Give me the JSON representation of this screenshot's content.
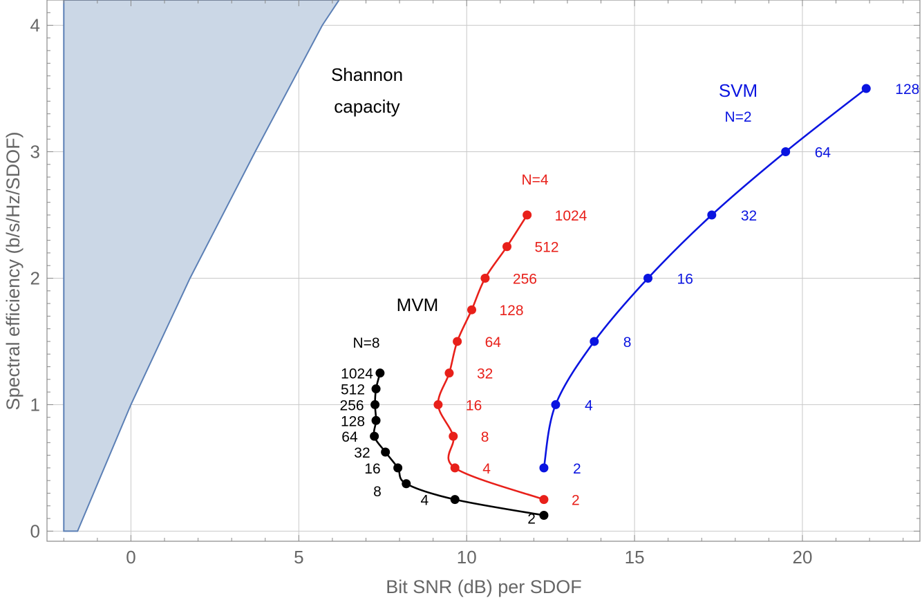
{
  "chart_data": {
    "type": "line",
    "title": "",
    "xlabel": "Bit SNR (dB) per SDOF",
    "ylabel": "Spectral efficiency (b/s/Hz/SDOF)",
    "xlim": [
      -2.5,
      23.5
    ],
    "ylim": [
      -0.08,
      4.2
    ],
    "x_ticks": [
      0,
      5,
      10,
      15,
      20
    ],
    "y_ticks": [
      0,
      1,
      2,
      3,
      4
    ],
    "grid": true,
    "region": {
      "name": "Shannon capacity",
      "fill": "#cbd7e6",
      "stroke": "#5b7fb5",
      "points": [
        [
          -2.0,
          0
        ],
        [
          -1.59,
          0
        ],
        [
          0,
          1
        ],
        [
          1.76,
          2
        ],
        [
          3.7,
          3
        ],
        [
          5.7,
          4
        ],
        [
          6.2,
          4.2
        ],
        [
          -2.0,
          4.2
        ]
      ]
    },
    "series": [
      {
        "name": "MVM N=8",
        "color": "#000000",
        "points": [
          {
            "label": "2",
            "x": 12.3,
            "y": 0.125
          },
          {
            "label": "4",
            "x": 9.65,
            "y": 0.25
          },
          {
            "label": "8",
            "x": 8.2,
            "y": 0.375
          },
          {
            "label": "16",
            "x": 7.95,
            "y": 0.5
          },
          {
            "label": "32",
            "x": 7.58,
            "y": 0.625
          },
          {
            "label": "64",
            "x": 7.25,
            "y": 0.75
          },
          {
            "label": "128",
            "x": 7.3,
            "y": 0.875
          },
          {
            "label": "256",
            "x": 7.27,
            "y": 1.0
          },
          {
            "label": "512",
            "x": 7.3,
            "y": 1.125
          },
          {
            "label": "1024",
            "x": 7.42,
            "y": 1.25
          }
        ]
      },
      {
        "name": "MVM N=4",
        "color": "#e8201a",
        "points": [
          {
            "label": "2",
            "x": 12.3,
            "y": 0.25
          },
          {
            "label": "4",
            "x": 9.65,
            "y": 0.5
          },
          {
            "label": "8",
            "x": 9.6,
            "y": 0.75
          },
          {
            "label": "16",
            "x": 9.15,
            "y": 1.0
          },
          {
            "label": "32",
            "x": 9.48,
            "y": 1.25
          },
          {
            "label": "64",
            "x": 9.72,
            "y": 1.5
          },
          {
            "label": "128",
            "x": 10.15,
            "y": 1.75
          },
          {
            "label": "256",
            "x": 10.55,
            "y": 2.0
          },
          {
            "label": "512",
            "x": 11.2,
            "y": 2.25
          },
          {
            "label": "1024",
            "x": 11.8,
            "y": 2.5
          }
        ]
      },
      {
        "name": "SVM N=2",
        "color": "#0a14e0",
        "points": [
          {
            "label": "2",
            "x": 12.3,
            "y": 0.5
          },
          {
            "label": "4",
            "x": 12.65,
            "y": 1.0
          },
          {
            "label": "8",
            "x": 13.8,
            "y": 1.5
          },
          {
            "label": "16",
            "x": 15.4,
            "y": 2.0
          },
          {
            "label": "32",
            "x": 17.3,
            "y": 2.5
          },
          {
            "label": "64",
            "x": 19.5,
            "y": 3.0
          },
          {
            "label": "128",
            "x": 21.9,
            "y": 3.5
          }
        ]
      }
    ],
    "annotations": {
      "shannon_line1": "Shannon",
      "shannon_line2": "capacity",
      "mvm": "MVM",
      "n8": "N=8",
      "n4": "N=4",
      "svm": "SVM",
      "n2": "N=2"
    },
    "colors": {
      "black": "#000000",
      "red": "#e8201a",
      "blue": "#0a14e0"
    }
  }
}
